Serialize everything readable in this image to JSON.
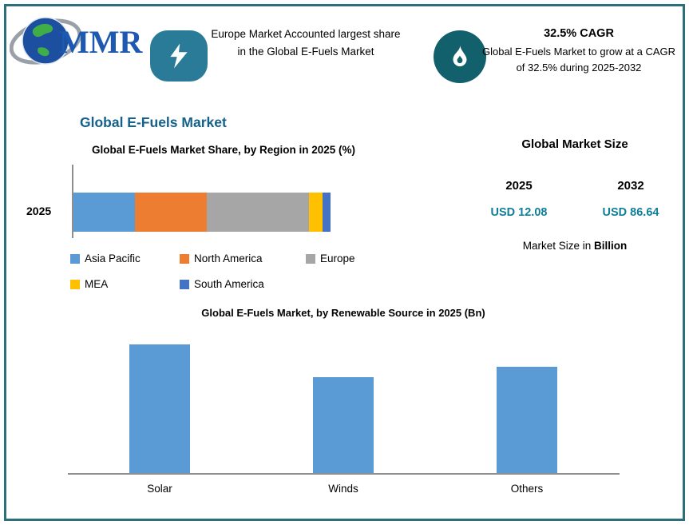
{
  "colors": {
    "frame_border": "#2b6f7a",
    "bolt_badge": "#2a7b98",
    "flame_badge": "#11606c",
    "main_title": "#14618c",
    "value_text": "#0f7f98",
    "bar_blue": "#5b9bd5"
  },
  "logo": {
    "text": "MMR"
  },
  "header": {
    "highlight": "Europe Market Accounted largest share in the Global E-Fuels Market",
    "cagr_title": "32.5% CAGR",
    "cagr_body": "Global E-Fuels Market to grow at a CAGR of 32.5% during 2025-2032"
  },
  "main_title": "Global E-Fuels Market",
  "chart_data": [
    {
      "type": "bar",
      "orientation": "horizontal-stacked",
      "title": "Global E-Fuels Market Share, by Region in 2025 (%)",
      "categories": [
        "2025"
      ],
      "xlabel": "",
      "ylabel": "",
      "legend_position": "bottom",
      "series": [
        {
          "name": "Asia Pacific",
          "color": "#5b9bd5",
          "values": [
            24
          ]
        },
        {
          "name": "North America",
          "color": "#ed7d31",
          "values": [
            28
          ]
        },
        {
          "name": "Europe",
          "color": "#a6a6a6",
          "values": [
            39.5
          ]
        },
        {
          "name": "MEA",
          "color": "#ffc000",
          "values": [
            5.5
          ]
        },
        {
          "name": "South America",
          "color": "#4472c4",
          "values": [
            3
          ]
        }
      ]
    },
    {
      "type": "bar",
      "title": "Global E-Fuels Market, by Renewable Source in 2025 (Bn)",
      "categories": [
        "Solar",
        "Winds",
        "Others"
      ],
      "values": [
        4.7,
        3.5,
        3.9
      ],
      "xlabel": "",
      "ylabel": "",
      "ylim": [
        0,
        5
      ],
      "grid": false,
      "bar_color": "#5b9bd5"
    }
  ],
  "market_size": {
    "title": "Global Market Size",
    "years": [
      "2025",
      "2032"
    ],
    "values": [
      "USD 12.08",
      "USD 86.64"
    ],
    "unit_prefix": "Market Size in ",
    "unit_bold": "Billion"
  }
}
